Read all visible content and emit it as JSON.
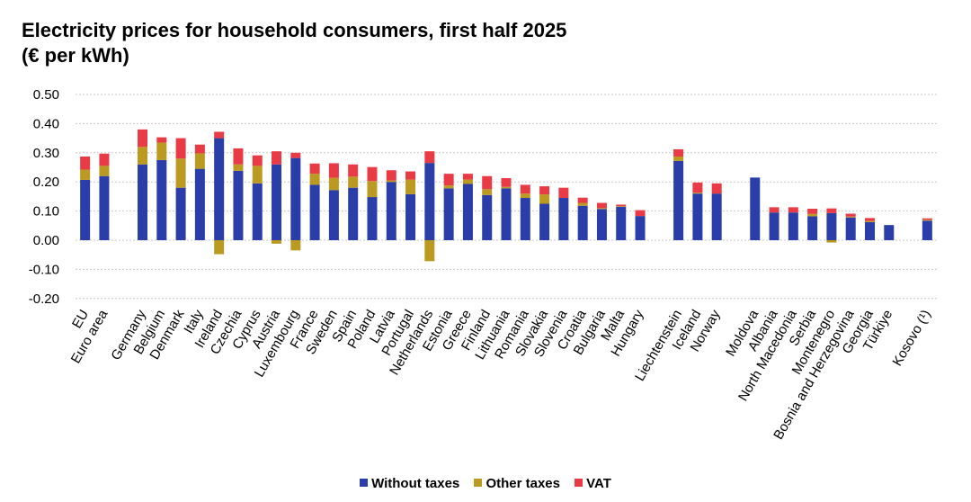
{
  "chart_data": {
    "type": "bar",
    "stacked": true,
    "title": "Electricity prices for household consumers, first half 2025",
    "subtitle": "(€ per kWh)",
    "xlabel": "",
    "ylabel": "",
    "ylim": [
      -0.2,
      0.5
    ],
    "yticks": [
      0.5,
      0.4,
      0.3,
      0.2,
      0.1,
      0.0,
      -0.1,
      -0.2
    ],
    "ytick_labels": [
      "0.50",
      "0.40",
      "0.30",
      "0.20",
      "0.10",
      "0.00",
      "-0.10",
      "-0.20"
    ],
    "grid": true,
    "legend_position": "bottom-center",
    "categories": [
      "EU",
      "Euro area",
      "",
      "Germany",
      "Belgium",
      "Denmark",
      "Italy",
      "Ireland",
      "Czechia",
      "Cyprus",
      "Austria",
      "Luxembourg",
      "France",
      "Sweden",
      "Spain",
      "Poland",
      "Latvia",
      "Portugal",
      "Netherlands",
      "Estonia",
      "Greece",
      "Finland",
      "Lithuania",
      "Romania",
      "Slovakia",
      "Slovenia",
      "Croatia",
      "Bulgaria",
      "Malta",
      "Hungary",
      "",
      "Liechtenstein",
      "Iceland",
      "Norway",
      "",
      "Moldova",
      "Albania",
      "North Macedonia",
      "Serbia",
      "Montenegro",
      "Bosnia and Herzegovina",
      "Georgia",
      "Türkiye",
      "",
      "Kosovo (¹)"
    ],
    "series": [
      {
        "name": "Without taxes",
        "color": "#2B3DA8",
        "values": [
          0.207,
          0.22,
          null,
          0.26,
          0.275,
          0.18,
          0.245,
          0.35,
          0.238,
          0.195,
          0.26,
          0.282,
          0.19,
          0.172,
          0.18,
          0.148,
          0.2,
          0.158,
          0.265,
          0.178,
          0.193,
          0.155,
          0.178,
          0.145,
          0.125,
          0.145,
          0.118,
          0.107,
          0.115,
          0.083,
          null,
          0.272,
          0.16,
          0.16,
          null,
          0.215,
          0.095,
          0.095,
          0.082,
          0.093,
          0.078,
          0.062,
          0.052,
          null,
          0.067
        ]
      },
      {
        "name": "Other taxes",
        "color": "#BB9A22",
        "values": [
          0.035,
          0.035,
          null,
          0.06,
          0.06,
          0.1,
          0.053,
          -0.048,
          0.022,
          0.06,
          -0.012,
          -0.035,
          0.038,
          0.042,
          0.038,
          0.055,
          0.005,
          0.05,
          -0.072,
          0.01,
          0.015,
          0.02,
          0.005,
          0.015,
          0.032,
          0.0,
          0.01,
          0.003,
          0.002,
          0.0,
          null,
          0.015,
          0.003,
          0.0,
          null,
          0.0,
          0.0,
          0.0,
          0.008,
          -0.008,
          0.003,
          0.004,
          0.0,
          null,
          0.003
        ]
      },
      {
        "name": "VAT",
        "color": "#E83B45",
        "values": [
          0.045,
          0.042,
          null,
          0.06,
          0.018,
          0.07,
          0.03,
          0.022,
          0.055,
          0.036,
          0.045,
          0.018,
          0.035,
          0.05,
          0.042,
          0.048,
          0.035,
          0.028,
          0.04,
          0.04,
          0.02,
          0.045,
          0.03,
          0.03,
          0.028,
          0.035,
          0.018,
          0.018,
          0.005,
          0.02,
          null,
          0.025,
          0.035,
          0.035,
          null,
          0.0,
          0.018,
          0.018,
          0.018,
          0.016,
          0.01,
          0.01,
          0.0,
          null,
          0.005
        ]
      }
    ]
  }
}
